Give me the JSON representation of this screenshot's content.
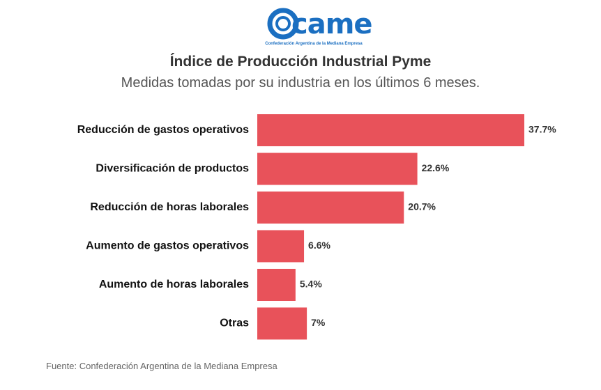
{
  "logo": {
    "wordmark": "came",
    "tagline": "Confederación Argentina de la Mediana Empresa",
    "color": "#1b6fc1"
  },
  "header": {
    "title": "Índice de Producción Industrial Pyme",
    "subtitle": "Medidas tomadas por su industria en los últimos 6 meses."
  },
  "chart_data": {
    "type": "bar",
    "orientation": "horizontal",
    "title": "Índice de Producción Industrial Pyme",
    "subtitle": "Medidas tomadas por su industria en los últimos 6 meses.",
    "categories": [
      "Reducción de gastos operativos",
      "Diversificación de productos",
      "Reducción de horas laborales",
      "Aumento de gastos operativos",
      "Aumento de horas laborales",
      "Otras"
    ],
    "values": [
      37.7,
      22.6,
      20.7,
      6.6,
      5.4,
      7
    ],
    "value_labels": [
      "37.7%",
      "22.6%",
      "20.7%",
      "6.6%",
      "5.4%",
      "7%"
    ],
    "unit": "%",
    "bar_color": "#e8525a",
    "xlim": [
      0,
      37.7
    ],
    "grid": false,
    "legend": "none"
  },
  "footer": {
    "source": "Fuente: Confederación Argentina de la Mediana Empresa"
  }
}
